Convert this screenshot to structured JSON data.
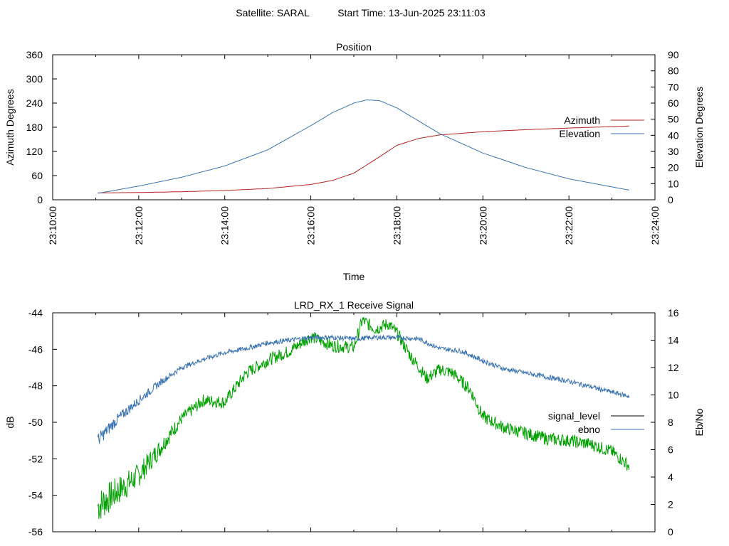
{
  "header": {
    "satellite_label": "Satellite: SARAL",
    "start_time_label": "Start Time: 13-Jun-2025 23:11:03"
  },
  "chart_data": [
    {
      "type": "line",
      "title": "Position",
      "xlabel": "Time",
      "ylabel": "Azimuth Degrees",
      "y2label": "Elevation Degrees",
      "x_ticks": [
        "23:10:00",
        "23:12:00",
        "23:14:00",
        "23:16:00",
        "23:18:00",
        "23:20:00",
        "23:22:00",
        "23:24:00"
      ],
      "xlim_minutes": [
        0,
        14
      ],
      "ylim": [
        0,
        360
      ],
      "y_ticks": [
        0,
        60,
        120,
        180,
        240,
        300,
        360
      ],
      "y2lim": [
        0,
        90
      ],
      "y2_ticks": [
        0,
        10,
        20,
        30,
        40,
        50,
        60,
        70,
        80,
        90
      ],
      "legend_position": "right",
      "grid": false,
      "series": [
        {
          "name": "Azimuth",
          "axis": "y",
          "color": "#b22222",
          "x_minutes": [
            1.05,
            2,
            3,
            4,
            5,
            6,
            6.5,
            7,
            7.5,
            8,
            8.5,
            9,
            10,
            11,
            12,
            13.4
          ],
          "values": [
            17,
            18,
            20,
            23,
            28,
            38,
            48,
            66,
            100,
            135,
            152,
            161,
            169,
            174,
            178,
            183
          ]
        },
        {
          "name": "Elevation",
          "axis": "y2",
          "color": "#3a73b0",
          "x_minutes": [
            1.05,
            2,
            3,
            4,
            5,
            6,
            6.5,
            7,
            7.3,
            7.6,
            8,
            8.5,
            9,
            10,
            11,
            12,
            13.4
          ],
          "values": [
            4,
            8.5,
            14,
            21,
            31,
            46,
            54,
            60,
            62,
            61.5,
            57,
            49,
            41,
            29,
            20,
            13,
            6
          ]
        }
      ]
    },
    {
      "type": "line",
      "title": "LRD_RX_1 Receive Signal",
      "xlabel": "",
      "ylabel": "dB",
      "y2label": "Eb/No",
      "xlim_minutes": [
        0,
        14
      ],
      "ylim": [
        -56,
        -44
      ],
      "y_ticks": [
        -56,
        -54,
        -52,
        -50,
        -48,
        -46,
        -44
      ],
      "y2lim": [
        0,
        16
      ],
      "y2_ticks": [
        0,
        2,
        4,
        6,
        8,
        10,
        12,
        14,
        16
      ],
      "legend_position": "right",
      "grid": false,
      "series": [
        {
          "name": "signal_level",
          "axis": "y",
          "color": "#00a000",
          "legend_color": "#000000",
          "x_minutes": [
            1.05,
            1.5,
            2,
            2.5,
            3,
            3.5,
            4,
            4.5,
            5,
            5.5,
            6,
            6.5,
            7,
            7.2,
            7.5,
            7.8,
            8,
            8.3,
            8.7,
            9,
            9.3,
            9.7,
            10,
            10.5,
            11,
            11.5,
            12,
            12.5,
            13,
            13.4
          ],
          "values": [
            -54.6,
            -53.8,
            -52.9,
            -51.4,
            -49.8,
            -48.8,
            -48.9,
            -47.3,
            -46.6,
            -46.1,
            -45.3,
            -45.8,
            -45.9,
            -44.4,
            -44.9,
            -44.6,
            -45.1,
            -46.3,
            -47.6,
            -47.1,
            -47.3,
            -48.2,
            -49.7,
            -50.3,
            -50.6,
            -50.9,
            -51.0,
            -51.2,
            -51.6,
            -52.4
          ],
          "noise": 0.35
        },
        {
          "name": "ebno",
          "axis": "y2",
          "color": "#3a73b0",
          "x_minutes": [
            1.05,
            1.5,
            2,
            2.5,
            3,
            3.5,
            4,
            4.5,
            5,
            5.5,
            6,
            6.5,
            7,
            7.5,
            8,
            8.5,
            9,
            9.5,
            10,
            10.5,
            11,
            11.5,
            12,
            12.5,
            13,
            13.4
          ],
          "values": [
            6.7,
            8.2,
            9.6,
            10.9,
            12,
            12.6,
            13.1,
            13.4,
            13.8,
            14,
            14.2,
            14.2,
            14.1,
            14.2,
            14.2,
            14.1,
            13.4,
            13.2,
            12.5,
            11.9,
            11.6,
            11.3,
            11,
            10.6,
            10.2,
            9.9
          ],
          "noise": 0.18
        }
      ]
    }
  ]
}
